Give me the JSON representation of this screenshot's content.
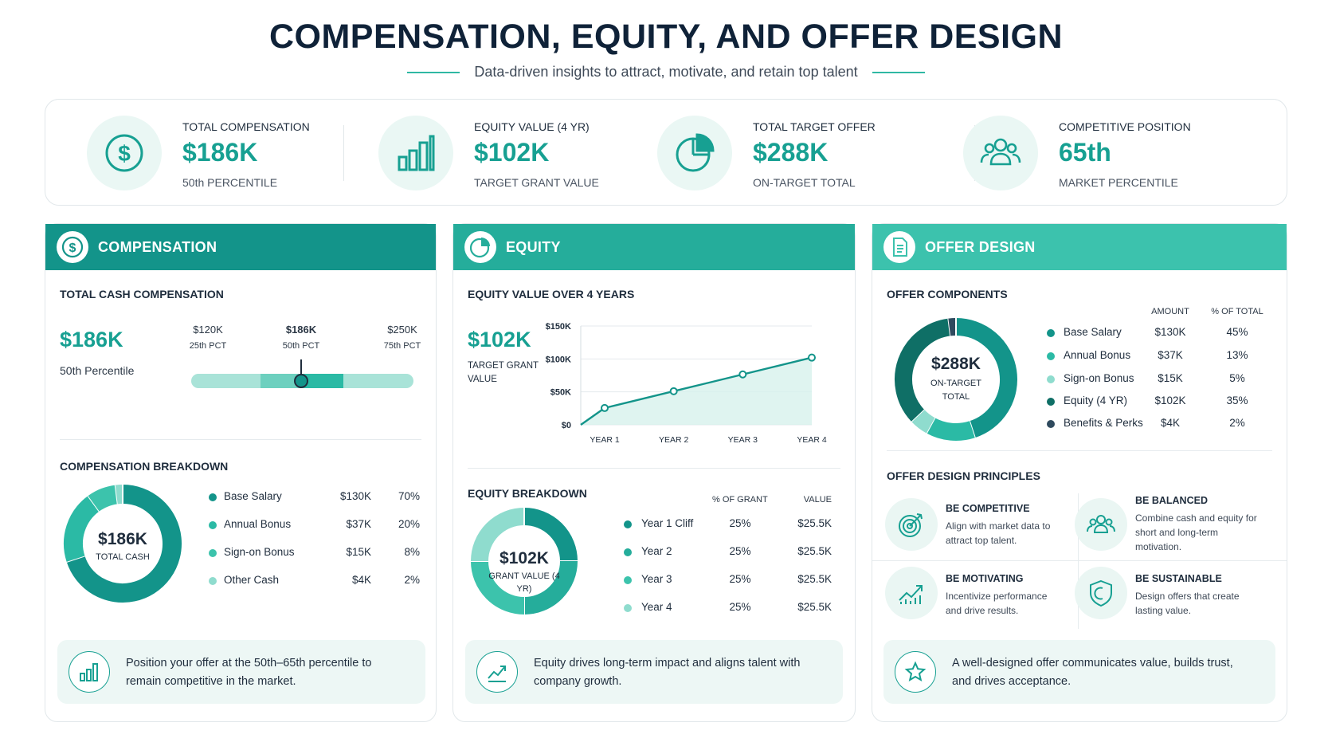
{
  "header": {
    "title": "COMPENSATION, EQUITY, AND OFFER DESIGN",
    "subtitle": "Data-driven insights to attract, motivate, and retain top talent"
  },
  "colors": {
    "teal_dark": "#13948a",
    "teal": "#2bbaa5",
    "teal_light": "#8fdcce",
    "teal_pale": "#c4ece5",
    "navy": "#2f4a5e",
    "text": "#1f2d3d"
  },
  "kpis": [
    {
      "label": "TOTAL COMPENSATION",
      "value": "$186K",
      "sub": "50th PERCENTILE",
      "icon": "dollar-icon"
    },
    {
      "label": "EQUITY VALUE (4 YR)",
      "value": "$102K",
      "sub": "TARGET GRANT VALUE",
      "icon": "bar-chart-icon"
    },
    {
      "label": "TOTAL TARGET OFFER",
      "value": "$288K",
      "sub": "ON-TARGET TOTAL",
      "icon": "pie-chart-icon"
    },
    {
      "label": "COMPETITIVE POSITION",
      "value": "65th",
      "sub": "MARKET PERCENTILE",
      "icon": "people-icon"
    }
  ],
  "compensation": {
    "header": "COMPENSATION",
    "total_cash_title": "TOTAL CASH COMPENSATION",
    "total_cash_value": "$186K",
    "total_cash_sub": "50th Percentile",
    "range": {
      "points": [
        {
          "value": "$120K",
          "label": "25th PCT"
        },
        {
          "value": "$186K",
          "label": "50th PCT"
        },
        {
          "value": "$250K",
          "label": "75th PCT"
        }
      ],
      "marker_percentile": 50
    },
    "breakdown_title": "COMPENSATION BREAKDOWN",
    "donut_value": "$186K",
    "donut_label": "TOTAL CASH",
    "rows": [
      {
        "label": "Base Salary",
        "amount": "$130K",
        "pct": "70%"
      },
      {
        "label": "Annual Bonus",
        "amount": "$37K",
        "pct": "20%"
      },
      {
        "label": "Sign-on Bonus",
        "amount": "$15K",
        "pct": "8%"
      },
      {
        "label": "Other Cash",
        "amount": "$4K",
        "pct": "2%"
      }
    ],
    "callout": "Position your offer at the 50th–65th percentile to remain competitive in the market."
  },
  "equity": {
    "header": "EQUITY",
    "chart_title": "EQUITY VALUE OVER 4 YEARS",
    "value": "$102K",
    "value_label": "TARGET GRANT VALUE",
    "breakdown_title": "EQUITY BREAKDOWN",
    "col_pct": "% OF GRANT",
    "col_value": "VALUE",
    "donut_value": "$102K",
    "donut_label": "GRANT VALUE (4 YR)",
    "rows": [
      {
        "label": "Year 1 Cliff",
        "pct": "25%",
        "value": "$25.5K"
      },
      {
        "label": "Year 2",
        "pct": "25%",
        "value": "$25.5K"
      },
      {
        "label": "Year 3",
        "pct": "25%",
        "value": "$25.5K"
      },
      {
        "label": "Year 4",
        "pct": "25%",
        "value": "$25.5K"
      }
    ],
    "callout": "Equity drives long-term impact and aligns talent with company growth."
  },
  "offer": {
    "header": "OFFER DESIGN",
    "components_title": "OFFER COMPONENTS",
    "col_amount": "AMOUNT",
    "col_pct": "% OF TOTAL",
    "donut_value": "$288K",
    "donut_label": "ON-TARGET TOTAL",
    "rows": [
      {
        "label": "Base Salary",
        "amount": "$130K",
        "pct": "45%"
      },
      {
        "label": "Annual Bonus",
        "amount": "$37K",
        "pct": "13%"
      },
      {
        "label": "Sign-on Bonus",
        "amount": "$15K",
        "pct": "5%"
      },
      {
        "label": "Equity (4 YR)",
        "amount": "$102K",
        "pct": "35%"
      },
      {
        "label": "Benefits & Perks",
        "amount": "$4K",
        "pct": "2%"
      }
    ],
    "principles_title": "OFFER DESIGN PRINCIPLES",
    "principles": [
      {
        "title": "BE COMPETITIVE",
        "desc": "Align with market data to attract top talent.",
        "icon": "target-icon"
      },
      {
        "title": "BE BALANCED",
        "desc": "Combine cash and equity for short and long-term motivation.",
        "icon": "people-icon"
      },
      {
        "title": "BE MOTIVATING",
        "desc": "Incentivize performance and drive results.",
        "icon": "trend-up-icon"
      },
      {
        "title": "BE SUSTAINABLE",
        "desc": "Design offers that create lasting value.",
        "icon": "shield-icon"
      }
    ],
    "callout": "A well-designed offer communicates value, builds trust, and drives acceptance."
  },
  "chart_data": [
    {
      "type": "pie",
      "title": "COMPENSATION BREAKDOWN",
      "categories": [
        "Base Salary",
        "Annual Bonus",
        "Sign-on Bonus",
        "Other Cash"
      ],
      "values": [
        70,
        20,
        8,
        2
      ]
    },
    {
      "type": "area",
      "title": "EQUITY VALUE OVER 4 YEARS",
      "categories": [
        "YEAR 1",
        "YEAR 2",
        "YEAR 3",
        "YEAR 4"
      ],
      "values": [
        25.5,
        51,
        76.5,
        102
      ],
      "y_ticks": [
        "$0",
        "$50K",
        "$100K",
        "$150K"
      ],
      "ylim": [
        0,
        150
      ],
      "grid": true
    },
    {
      "type": "pie",
      "title": "EQUITY BREAKDOWN",
      "categories": [
        "Year 1 Cliff",
        "Year 2",
        "Year 3",
        "Year 4"
      ],
      "values": [
        25,
        25,
        25,
        25
      ]
    },
    {
      "type": "pie",
      "title": "OFFER COMPONENTS",
      "categories": [
        "Base Salary",
        "Annual Bonus",
        "Sign-on Bonus",
        "Equity (4 YR)",
        "Benefits & Perks"
      ],
      "values": [
        45,
        13,
        5,
        35,
        2
      ]
    }
  ]
}
